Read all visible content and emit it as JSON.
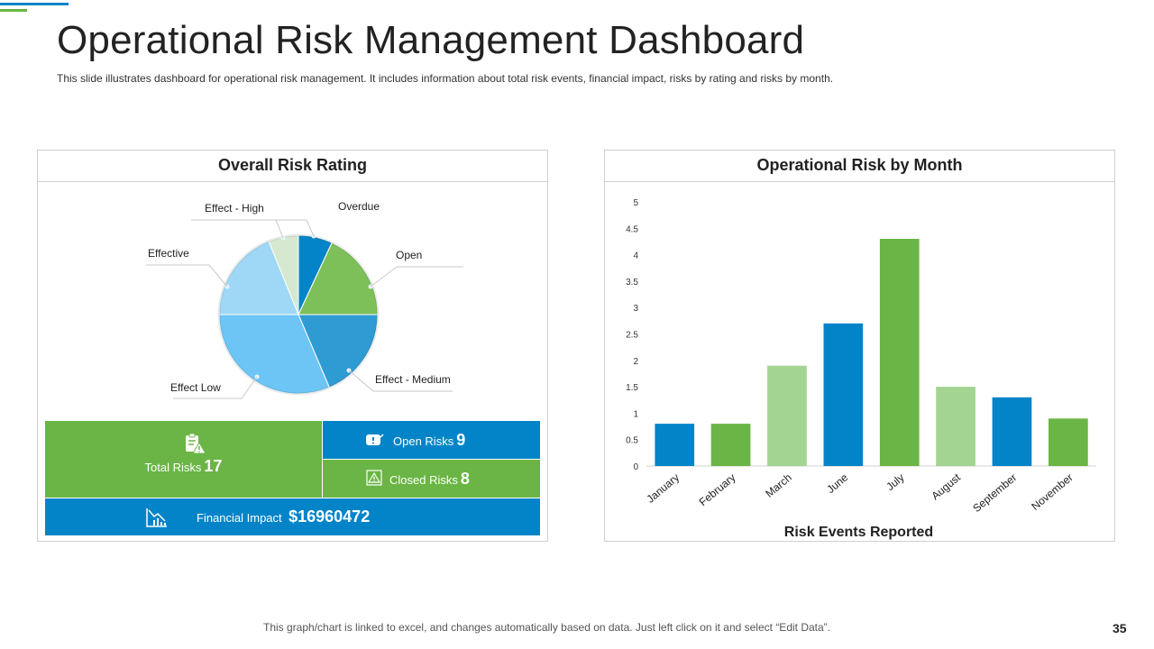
{
  "header": {
    "title": "Operational Risk Management Dashboard",
    "subtitle": "This slide illustrates dashboard for operational risk management. It includes information about total risk events, financial impact, risks by rating and risks by month."
  },
  "left_panel": {
    "title": "Overall Risk Rating",
    "pie": {
      "labels": [
        "Overdue",
        "Open",
        "Effect - Medium",
        "Effect Low",
        "Effective",
        "Effect - High"
      ],
      "colors": [
        "#0484c8",
        "#7dc05a",
        "#2f9bd3",
        "#6cc5f5",
        "#9fd8f7",
        "#d6e8cf"
      ]
    },
    "stats": {
      "total_label": "Total Risks",
      "total_value": "17",
      "open_label": "Open Risks",
      "open_value": "9",
      "closed_label": "Closed Risks",
      "closed_value": "8",
      "financial_label": "Financial Impact",
      "financial_value": "$16960472"
    }
  },
  "chart_data": {
    "type": "bar",
    "title": "Operational Risk by Month",
    "xlabel": "Risk Events Reported",
    "ylabel": "",
    "ylim": [
      0,
      5
    ],
    "yticks": [
      "0",
      "0.5",
      "1",
      "1.5",
      "2",
      "2.5",
      "3",
      "3.5",
      "4",
      "4.5",
      "5"
    ],
    "categories": [
      "January",
      "February",
      "March",
      "June",
      "July",
      "August",
      "September",
      "November"
    ],
    "values": [
      0.8,
      0.8,
      1.9,
      2.7,
      4.3,
      1.5,
      1.3,
      0.9
    ],
    "colors": [
      "#0484c8",
      "#6ab545",
      "#a3d491",
      "#0484c8",
      "#6ab545",
      "#a3d491",
      "#0484c8",
      "#6ab545"
    ],
    "grid": false,
    "legend": "none"
  },
  "footer": {
    "note": "This graph/chart is linked to excel, and changes automatically based on data. Just left click on it and select “Edit Data”.",
    "page": "35"
  }
}
